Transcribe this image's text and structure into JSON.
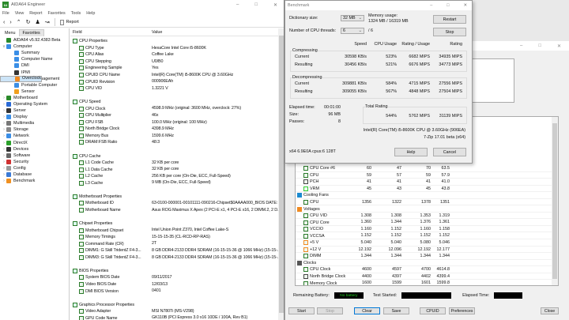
{
  "aida": {
    "title": "AIDA64 Engineer",
    "logo": "64",
    "menu": [
      "File",
      "View",
      "Report",
      "Favorites",
      "Tools",
      "Help"
    ],
    "toolbar": {
      "icons": [
        "back-icon",
        "forward-icon",
        "up-icon",
        "refresh-icon",
        "user-icon",
        "chart-icon"
      ],
      "report": "Report"
    },
    "tabs": [
      "Menu",
      "Favorites"
    ],
    "tree": [
      {
        "label": "AIDA64 v5.92.4383 Beta",
        "level": 0,
        "icon": "aida64-icon",
        "color": "#2a8a2a"
      },
      {
        "label": "Computer",
        "level": 0,
        "expanded": true,
        "icon": "computer-icon",
        "color": "#3a8ee6"
      },
      {
        "label": "Summary",
        "level": 1,
        "icon": "summary-icon",
        "color": "#3a8ee6"
      },
      {
        "label": "Computer Name",
        "level": 1,
        "icon": "computer-name-icon",
        "color": "#3a8ee6"
      },
      {
        "label": "DMI",
        "level": 1,
        "icon": "dmi-icon",
        "color": "#3a8ee6"
      },
      {
        "label": "IPMI",
        "level": 1,
        "icon": "ipmi-icon",
        "color": "#333"
      },
      {
        "label": "Overclock",
        "level": 1,
        "icon": "overclock-icon",
        "color": "#f08a20",
        "selected": true
      },
      {
        "label": "Power Management",
        "level": 1,
        "icon": "power-icon",
        "color": "#2a9a2a"
      },
      {
        "label": "Portable Computer",
        "level": 1,
        "icon": "portable-icon",
        "color": "#3a8ee6"
      },
      {
        "label": "Sensor",
        "level": 1,
        "icon": "sensor-icon",
        "color": "#f0a020"
      },
      {
        "label": "Motherboard",
        "level": 0,
        "collapsed": true,
        "icon": "motherboard-icon",
        "color": "#2a8a2a"
      },
      {
        "label": "Operating System",
        "level": 0,
        "collapsed": true,
        "icon": "os-icon",
        "color": "#2a6ad6"
      },
      {
        "label": "Server",
        "level": 0,
        "collapsed": true,
        "icon": "server-icon",
        "color": "#333"
      },
      {
        "label": "Display",
        "level": 0,
        "collapsed": true,
        "icon": "display-icon",
        "color": "#3a8ee6"
      },
      {
        "label": "Multimedia",
        "level": 0,
        "collapsed": true,
        "icon": "multimedia-icon",
        "color": "#777"
      },
      {
        "label": "Storage",
        "level": 0,
        "collapsed": true,
        "icon": "storage-icon",
        "color": "#888"
      },
      {
        "label": "Network",
        "level": 0,
        "collapsed": true,
        "icon": "network-icon",
        "color": "#3a8ee6"
      },
      {
        "label": "DirectX",
        "level": 0,
        "collapsed": true,
        "icon": "directx-icon",
        "color": "#2aa02a"
      },
      {
        "label": "Devices",
        "level": 0,
        "collapsed": true,
        "icon": "devices-icon",
        "color": "#333"
      },
      {
        "label": "Software",
        "level": 0,
        "collapsed": true,
        "icon": "software-icon",
        "color": "#666"
      },
      {
        "label": "Security",
        "level": 0,
        "collapsed": true,
        "icon": "security-icon",
        "color": "#d03030"
      },
      {
        "label": "Config",
        "level": 0,
        "collapsed": true,
        "icon": "config-icon",
        "color": "#999"
      },
      {
        "label": "Database",
        "level": 0,
        "collapsed": true,
        "icon": "database-icon",
        "color": "#3a7ad6"
      },
      {
        "label": "Benchmark",
        "level": 0,
        "collapsed": true,
        "icon": "benchmark-icon",
        "color": "#f09020"
      }
    ],
    "columns": {
      "field": "Field",
      "value": "Value"
    },
    "sections": [
      {
        "title": "CPU Properties",
        "icon": "cpu-icon",
        "items": [
          [
            "CPU Type",
            "HexaCore Intel Core i5-8600K"
          ],
          [
            "CPU Alias",
            "Coffee Lake"
          ],
          [
            "CPU Stepping",
            "U0/B0"
          ],
          [
            "Engineering Sample",
            "Yes"
          ],
          [
            "CPUID CPU Name",
            "Intel(R) Core(TM) i5-8600K CPU @ 3.60GHz"
          ],
          [
            "CPUID Revision",
            "000906EAh"
          ],
          [
            "CPU VID",
            "1.3221 V"
          ]
        ]
      },
      {
        "title": "CPU Speed",
        "icon": "cpu-icon",
        "items": [
          [
            "CPU Clock",
            "4598.9 MHz  (original: 3600 MHz, overclock: 27%)"
          ],
          [
            "CPU Multiplier",
            "46x"
          ],
          [
            "CPU FSB",
            "100.0 MHz  (original: 100 MHz)"
          ],
          [
            "North Bridge Clock",
            "4398.9 MHz"
          ],
          [
            "Memory Bus",
            "1599.6 MHz"
          ],
          [
            "DRAM:FSB Ratio",
            "48:3"
          ]
        ]
      },
      {
        "title": "CPU Cache",
        "icon": "cache-icon",
        "items": [
          [
            "L1 Code Cache",
            "32 KB per core"
          ],
          [
            "L1 Data Cache",
            "32 KB per core"
          ],
          [
            "L2 Cache",
            "256 KB per core  (On-Die, ECC, Full-Speed)"
          ],
          [
            "L3 Cache",
            "9 MB  (On-Die, ECC, Full-Speed)"
          ]
        ]
      },
      {
        "title": "Motherboard Properties",
        "icon": "motherboard-icon",
        "items": [
          [
            "Motherboard ID",
            "63-0100-000001-00101111-090216-Chipset$0AAAA000_BIOS DATE: ..."
          ],
          [
            "Motherboard Name",
            "Asus ROG Maximus X Apex  (2 PCI-E x1, 4 PCI-E x16, 2 DIMM.2, 2 D..."
          ]
        ]
      },
      {
        "title": "Chipset Properties",
        "icon": "chipset-icon",
        "items": [
          [
            "Motherboard Chipset",
            "Intel Union Point Z370, Intel Coffee Lake-S"
          ],
          [
            "Memory Timings",
            "15-15-15-35  (CL-RCD-RP-RAS)"
          ],
          [
            "Command Rate (CR)",
            "2T"
          ],
          [
            "DIMM1: G Skill TridentZ F4-3...",
            "8 GB DDR4-2133 DDR4 SDRAM  (16-15-15-36 @ 1066 MHz)  (15-15-..."
          ],
          [
            "DIMM3: G Skill TridentZ F4-3...",
            "8 GB DDR4-2133 DDR4 SDRAM  (16-15-15-36 @ 1066 MHz)  (15-15-..."
          ]
        ]
      },
      {
        "title": "BIOS Properties",
        "icon": "bios-icon",
        "items": [
          [
            "System BIOS Date",
            "09/11/2017"
          ],
          [
            "Video BIOS Date",
            "12/03/13"
          ],
          [
            "DMI BIOS Version",
            "0401"
          ]
        ]
      },
      {
        "title": "Graphics Processor Properties",
        "icon": "gpu-icon",
        "items": [
          [
            "Video Adapter",
            "MSI N780Ti (MS-V298)"
          ],
          [
            "GPU Code Name",
            "GK110B  (PCI Express 3.0 x16 10DE / 100A, Rev B1)"
          ]
        ]
      }
    ]
  },
  "bench": {
    "title": "Benchmark",
    "dict_label": "Dictionary size:",
    "dict_value": "32 MB",
    "mem_label": "Memory usage:",
    "mem_value": "1324 MB / 16319 MB",
    "threads_label": "Number of CPU threads:",
    "threads_value": "6",
    "threads_total": "/ 6",
    "restart": "Restart",
    "stop": "Stop",
    "headers": [
      "Speed",
      "CPU Usage",
      "Rating / Usage",
      "Rating"
    ],
    "compressing": {
      "label": "Compressing",
      "rows": [
        [
          "Current",
          "30598 KB/s",
          "523%",
          "6682 MIPS",
          "34935 MIPS"
        ],
        [
          "Resulting",
          "30456 KB/s",
          "521%",
          "6676 MIPS",
          "34773 MIPS"
        ]
      ]
    },
    "decompressing": {
      "label": "Decompressing",
      "rows": [
        [
          "Current",
          "309881 KB/s",
          "584%",
          "4715 MIPS",
          "27556 MIPS"
        ],
        [
          "Resulting",
          "309055 KB/s",
          "567%",
          "4848 MIPS",
          "27504 MIPS"
        ]
      ]
    },
    "elapsed_label": "Elapsed time:",
    "elapsed": "00:01:00",
    "size_label": "Size:",
    "size": "96 MB",
    "passes_label": "Passes:",
    "passes": "8",
    "total_label": "Total Rating",
    "total": [
      "544%",
      "5762 MIPS",
      "31139 MIPS"
    ],
    "cpu": "Intel(R) Core(TM) i5-8600K CPU @ 3.60GHz (906EA)",
    "version": "7-Zip 17.01 beta (x64)",
    "footer": "x64 6.9E0A cpus:6 128T",
    "help": "Help",
    "cancel": "Cancel"
  },
  "stability": {
    "sensors": [
      {
        "name": "CPU Core #6",
        "v": [
          "60",
          "47",
          "70",
          "63.5"
        ],
        "icon": "cpu-icon",
        "indent": 1
      },
      {
        "name": "CPU",
        "v": [
          "59",
          "57",
          "59",
          "57.9"
        ],
        "icon": "cpu-icon",
        "indent": 1
      },
      {
        "name": "PCH",
        "v": [
          "41",
          "41",
          "41",
          "41.0"
        ],
        "icon": "chip-icon",
        "indent": 1
      },
      {
        "name": "VRM",
        "v": [
          "45",
          "43",
          "45",
          "43.8"
        ],
        "icon": "vrm-icon",
        "indent": 1
      },
      {
        "name": "Cooling Fans",
        "group": true,
        "icon": "fan-icon"
      },
      {
        "name": "CPU",
        "v": [
          "1356",
          "1322",
          "1378",
          "1351"
        ],
        "icon": "cpu-icon",
        "indent": 1
      },
      {
        "name": "Voltages",
        "group": true,
        "icon": "voltage-icon"
      },
      {
        "name": "CPU VID",
        "v": [
          "1.308",
          "1.308",
          "1.353",
          "1.319"
        ],
        "icon": "cpu-icon",
        "indent": 1
      },
      {
        "name": "CPU Core",
        "v": [
          "1.360",
          "1.344",
          "1.376",
          "1.361"
        ],
        "icon": "cpu-icon",
        "indent": 1
      },
      {
        "name": "VCCIO",
        "v": [
          "1.160",
          "1.152",
          "1.160",
          "1.158"
        ],
        "icon": "cpu-icon",
        "indent": 1
      },
      {
        "name": "VCCSA",
        "v": [
          "1.152",
          "1.152",
          "1.152",
          "1.152"
        ],
        "icon": "cpu-icon",
        "indent": 1
      },
      {
        "name": "+5 V",
        "v": [
          "5.040",
          "5.040",
          "5.080",
          "5.046"
        ],
        "icon": "voltage-icon",
        "indent": 1
      },
      {
        "name": "+12 V",
        "v": [
          "12.192",
          "12.096",
          "12.192",
          "12.177"
        ],
        "icon": "voltage-icon",
        "indent": 1
      },
      {
        "name": "DIMM",
        "v": [
          "1.344",
          "1.344",
          "1.344",
          "1.344"
        ],
        "icon": "memory-icon",
        "indent": 1
      },
      {
        "name": "Clocks",
        "group": true,
        "icon": "clock-icon"
      },
      {
        "name": "CPU Clock",
        "v": [
          "4600",
          "4597",
          "4700",
          "4614.8"
        ],
        "icon": "cpu-icon",
        "indent": 1
      },
      {
        "name": "North Bridge Clock",
        "v": [
          "4400",
          "4397",
          "4402",
          "4399.4"
        ],
        "icon": "chip-icon",
        "indent": 1
      },
      {
        "name": "Memory Clock",
        "v": [
          "1600",
          "1599",
          "1601",
          "1599.8"
        ],
        "icon": "memory-icon",
        "indent": 1
      }
    ],
    "battery_label": "Remaining Battery:",
    "battery": "No battery",
    "started_label": "Test Started:",
    "elapsed_label": "Elapsed Time:",
    "buttons": {
      "start": "Start",
      "stop": "Stop",
      "clear": "Clear",
      "save": "Save",
      "cpuid": "CPUID",
      "preferences": "Preferences",
      "close": "Close"
    }
  },
  "colors": {
    "accent_green": "#2a8a2a",
    "battery_text": "#1fd01f",
    "selection": "#cce4f7"
  }
}
